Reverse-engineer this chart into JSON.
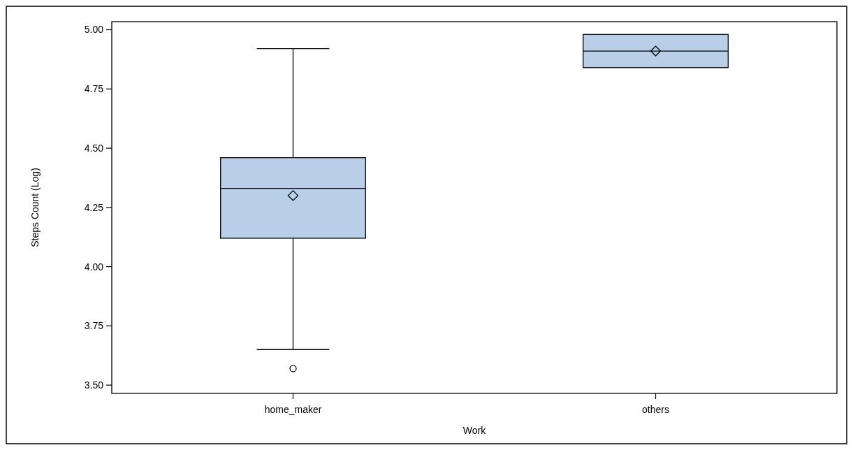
{
  "chart_data": {
    "type": "box",
    "xlabel": "Work",
    "ylabel": "Steps Count (Log)",
    "categories": [
      "home_maker",
      "others"
    ],
    "color": "#b9cfe7",
    "marker": "diamond",
    "boxes": [
      {
        "low": 3.65,
        "q1": 4.12,
        "median": 4.33,
        "q3": 4.46,
        "high": 4.92,
        "mean": 4.3,
        "outliers": [
          3.57
        ]
      },
      {
        "low": 4.84,
        "q1": 4.84,
        "median": 4.91,
        "q3": 4.98,
        "high": 4.98,
        "mean": 4.91
      }
    ],
    "ylim": [
      3.465,
      5.034
    ],
    "yticks": [
      {
        "value": 3.5,
        "label": "3.50"
      },
      {
        "value": 3.75,
        "label": "3.75"
      },
      {
        "value": 4,
        "label": "4.00"
      },
      {
        "value": 4.25,
        "label": "4.25"
      },
      {
        "value": 4.5,
        "label": "4.50"
      },
      {
        "value": 4.75,
        "label": "4.75"
      },
      {
        "value": 5,
        "label": "5.00"
      }
    ],
    "grid": false
  }
}
